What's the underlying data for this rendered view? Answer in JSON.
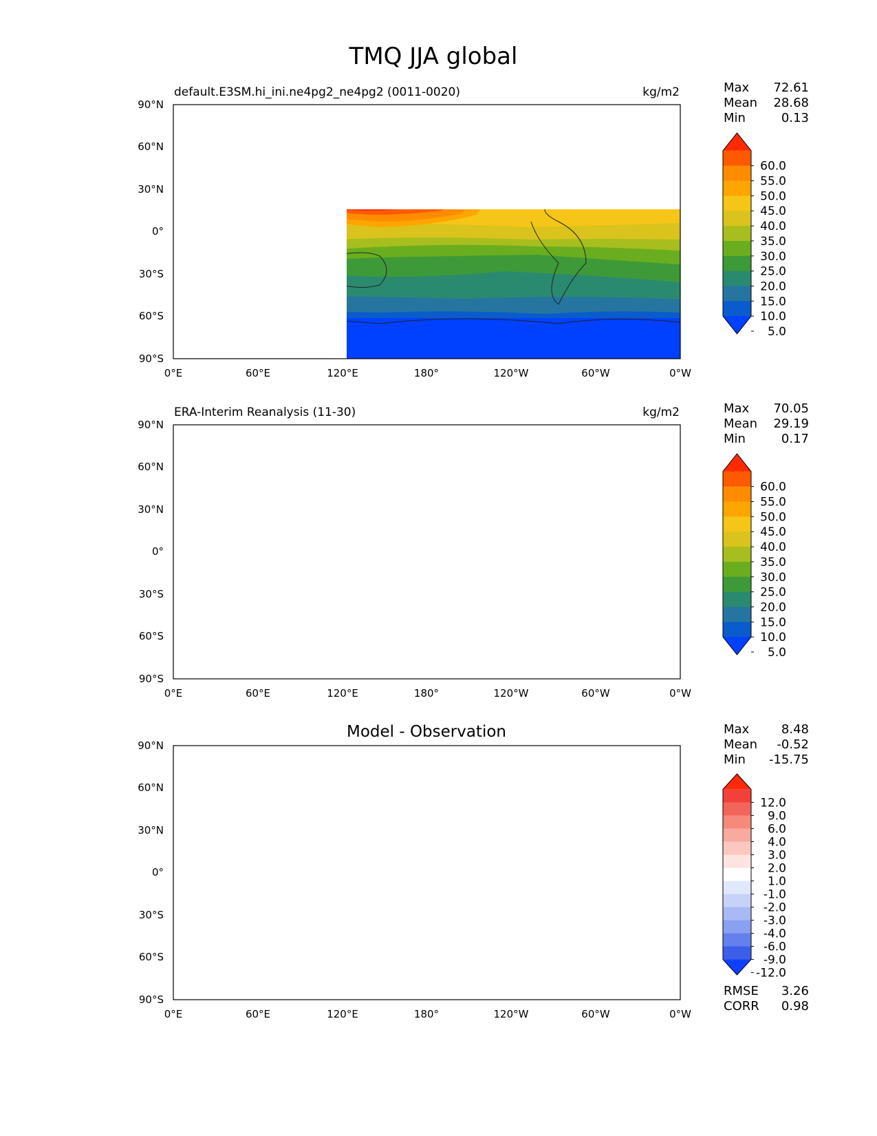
{
  "figure_title": "TMQ JJA global",
  "lon_ticks": [
    "0°E",
    "60°E",
    "120°E",
    "180°",
    "120°W",
    "60°W",
    "0°W"
  ],
  "lat_ticks": [
    "90°N",
    "60°N",
    "30°N",
    "0°",
    "30°S",
    "60°S",
    "90°S"
  ],
  "stat_labels": {
    "max": "Max",
    "mean": "Mean",
    "min": "Min",
    "rmse": "RMSE",
    "corr": "CORR"
  },
  "panels": [
    {
      "id": "model",
      "title_left": "default.E3SM.hi_ini.ne4pg2_ne4pg2 (0011-0020)",
      "title_center": "",
      "units": "kg/m2",
      "stats": {
        "max": "72.61",
        "mean": "28.68",
        "min": "0.13"
      },
      "colorbar": {
        "labels": [
          "60.0",
          "55.0",
          "50.0",
          "45.0",
          "40.0",
          "35.0",
          "30.0",
          "25.0",
          "20.0",
          "15.0",
          "10.0",
          "5.0"
        ],
        "colors": [
          "#ff2a00",
          "#ff5a00",
          "#ff8c00",
          "#ffa500",
          "#f5c518",
          "#d9c31c",
          "#a8be1e",
          "#6aae1f",
          "#3e9a38",
          "#2a8a70",
          "#2675a0",
          "#0a5ccc",
          "#0040ff"
        ]
      }
    },
    {
      "id": "obs",
      "title_left": "ERA-Interim Reanalysis (11-30)",
      "title_center": "",
      "units": "kg/m2",
      "stats": {
        "max": "70.05",
        "mean": "29.19",
        "min": "0.17"
      },
      "colorbar": {
        "labels": [
          "60.0",
          "55.0",
          "50.0",
          "45.0",
          "40.0",
          "35.0",
          "30.0",
          "25.0",
          "20.0",
          "15.0",
          "10.0",
          "5.0"
        ],
        "colors": [
          "#ff2a00",
          "#ff5a00",
          "#ff8c00",
          "#ffa500",
          "#f5c518",
          "#d9c31c",
          "#a8be1e",
          "#6aae1f",
          "#3e9a38",
          "#2a8a70",
          "#2675a0",
          "#0a5ccc",
          "#0040ff"
        ]
      }
    },
    {
      "id": "diff",
      "title_left": "",
      "title_center": "Model - Observation",
      "units": "",
      "stats": {
        "max": "8.48",
        "mean": "-0.52",
        "min": "-15.75",
        "rmse": "3.26",
        "corr": "0.98"
      },
      "colorbar": {
        "labels": [
          "12.0",
          "9.0",
          "6.0",
          "4.0",
          "3.0",
          "2.0",
          "1.0",
          "-1.0",
          "-2.0",
          "-3.0",
          "-4.0",
          "-6.0",
          "-9.0",
          "-12.0"
        ],
        "colors": [
          "#ff2a0a",
          "#f2403a",
          "#f2665a",
          "#f58a7a",
          "#f8aaa0",
          "#fbc8c0",
          "#fde4e0",
          "#ffffff",
          "#e2e8fc",
          "#c7d2f8",
          "#a9b9f4",
          "#8aa0f0",
          "#6480ec",
          "#3c5ee8",
          "#1040ff"
        ]
      }
    }
  ]
}
